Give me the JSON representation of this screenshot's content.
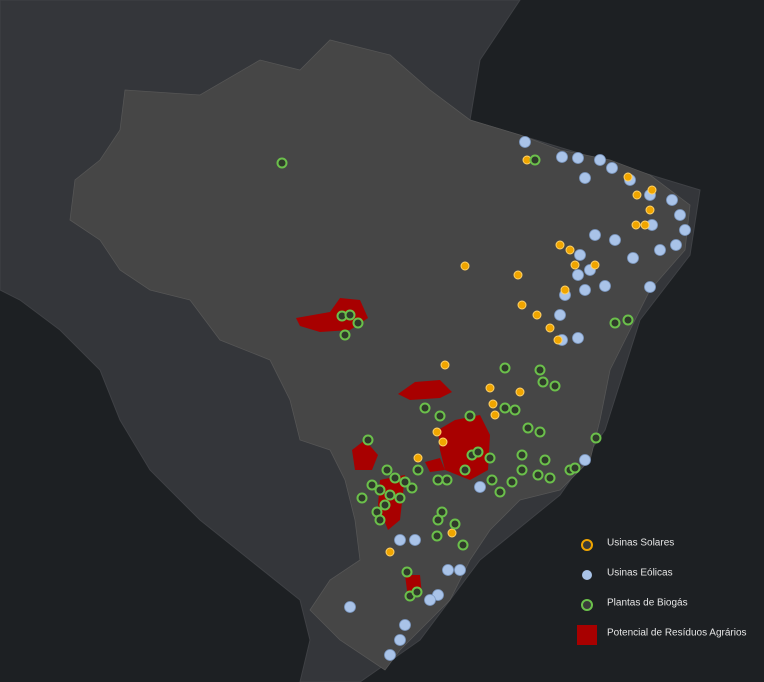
{
  "legend": {
    "items": [
      {
        "label": "Usinas Solares"
      },
      {
        "label": "Usinas Eólicas"
      },
      {
        "label": "Plantas de Biogás"
      },
      {
        "label": "Potencial de Resíduos Agrários"
      }
    ]
  }
}
